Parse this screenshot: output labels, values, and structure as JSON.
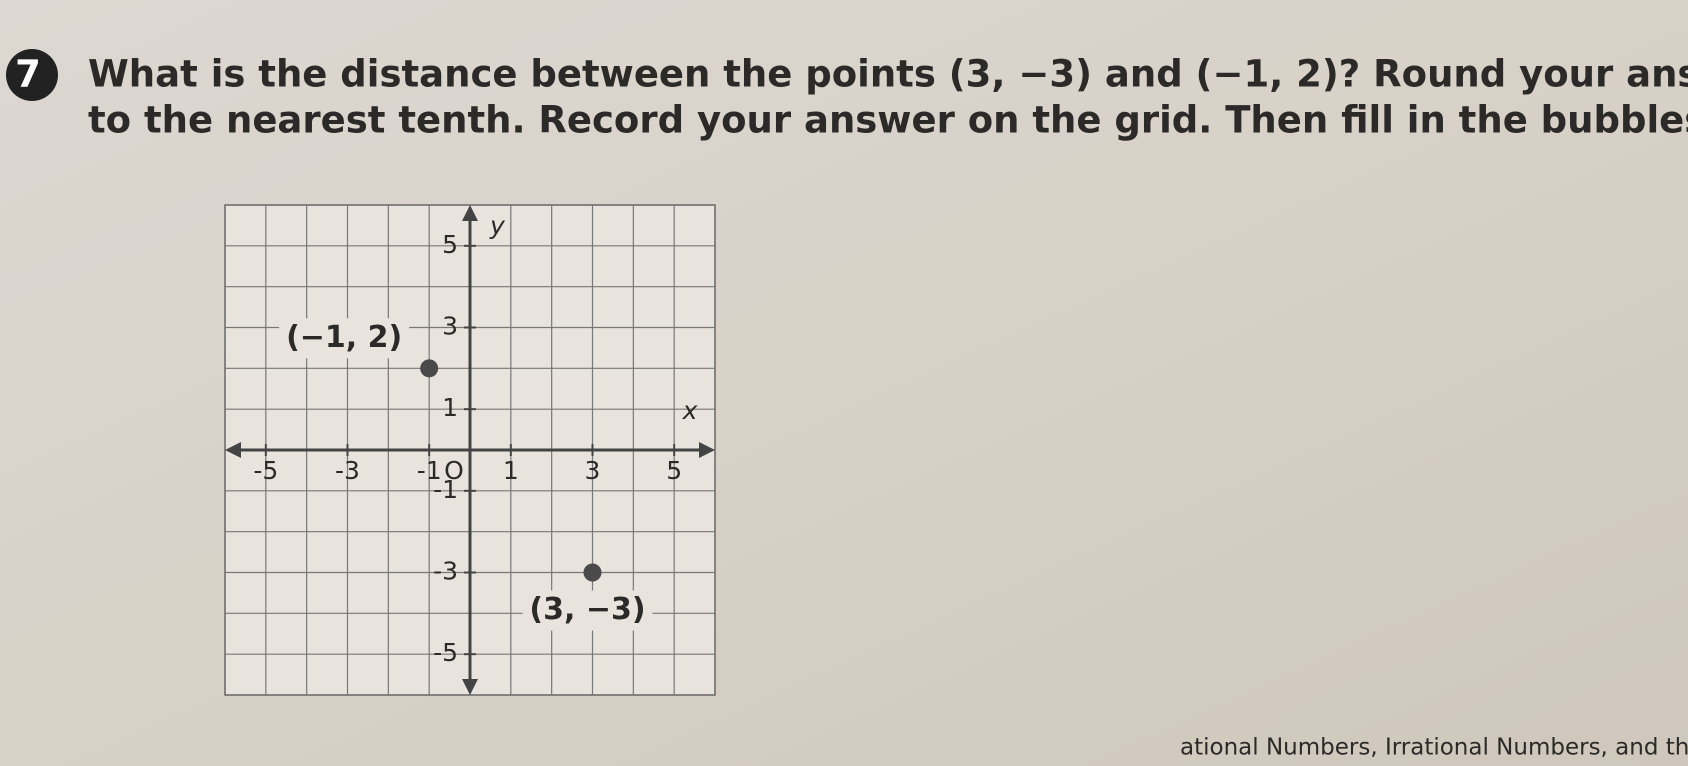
{
  "question": {
    "number": "7",
    "lines": [
      "What is the distance between the points (3, −3) and (−1, 2)? Round your answer",
      "to the nearest tenth. Record your answer on the grid. Then fill in the bubbles."
    ]
  },
  "chart_data": {
    "type": "scatter",
    "xlabel": "x",
    "ylabel": "y",
    "origin_label": "O",
    "xlim": [
      -6,
      6
    ],
    "ylim": [
      -6,
      6
    ],
    "xticks": [
      -5,
      -3,
      -1,
      1,
      3,
      5
    ],
    "yticks": [
      5,
      3,
      1,
      -1,
      -3,
      -5
    ],
    "grid": true,
    "x": [
      -1,
      3
    ],
    "series": [
      {
        "color": "#4a4a4a",
        "values": [
          2,
          -3
        ],
        "point_labels": [
          "(−1, 2)",
          "(3, −3)"
        ]
      }
    ]
  },
  "footer": "ational Numbers, Irrational Numbers, and the P"
}
